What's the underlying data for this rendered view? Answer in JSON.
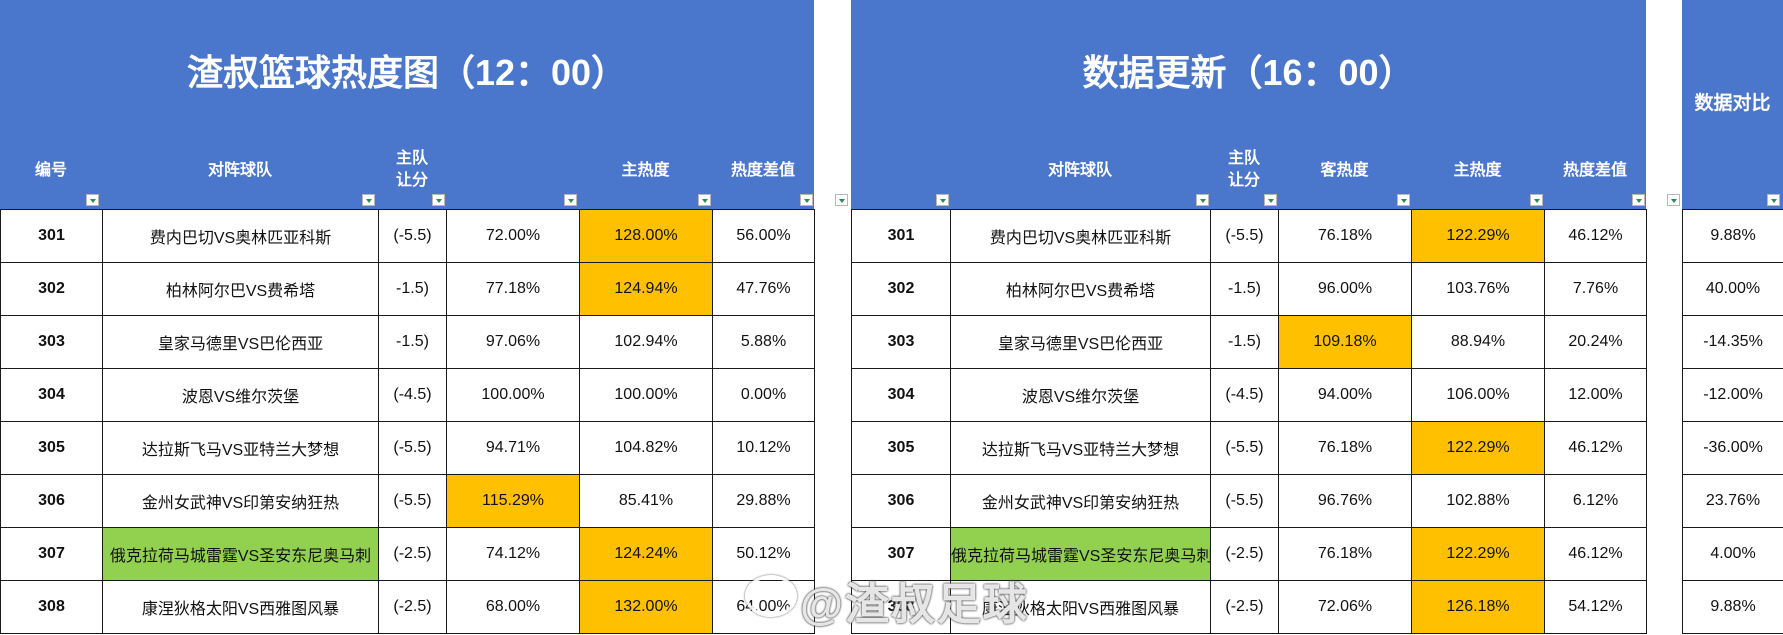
{
  "left": {
    "title": "渣叔篮球热度图（12：00）",
    "headers": [
      "编号",
      "对阵球队",
      "主队\n让分",
      "",
      "主热度",
      "热度差值"
    ],
    "rows": [
      {
        "id": "301",
        "match": "费内巴切VS奥林匹亚科斯",
        "handicap": "(-5.5)",
        "away": "72.00%",
        "home": "128.00%",
        "diff": "56.00%"
      },
      {
        "id": "302",
        "match": "柏林阿尔巴VS费希塔",
        "handicap": "-1.5)",
        "away": "77.18%",
        "home": "124.94%",
        "diff": "47.76%"
      },
      {
        "id": "303",
        "match": "皇家马德里VS巴伦西亚",
        "handicap": "-1.5)",
        "away": "97.06%",
        "home": "102.94%",
        "diff": "5.88%"
      },
      {
        "id": "304",
        "match": "波恩VS维尔茨堡",
        "handicap": "(-4.5)",
        "away": "100.00%",
        "home": "100.00%",
        "diff": "0.00%"
      },
      {
        "id": "305",
        "match": "达拉斯飞马VS亚特兰大梦想",
        "handicap": "(-5.5)",
        "away": "94.71%",
        "home": "104.82%",
        "diff": "10.12%"
      },
      {
        "id": "306",
        "match": "金州女武神VS印第安纳狂热",
        "handicap": "(-5.5)",
        "away": "115.29%",
        "home": "85.41%",
        "diff": "29.88%"
      },
      {
        "id": "307",
        "match": "俄克拉荷马城雷霆VS圣安东尼奥马刺",
        "handicap": "(-2.5)",
        "away": "74.12%",
        "home": "124.24%",
        "diff": "50.12%"
      },
      {
        "id": "308",
        "match": "康涅狄格太阳VS西雅图风暴",
        "handicap": "(-2.5)",
        "away": "68.00%",
        "home": "132.00%",
        "diff": "64.00%"
      }
    ]
  },
  "right": {
    "title": "数据更新（16：00）",
    "headers": [
      "",
      "对阵球队",
      "主队\n让分",
      "客热度",
      "主热度",
      "热度差值"
    ],
    "rows": [
      {
        "id": "301",
        "match": "费内巴切VS奥林匹亚科斯",
        "handicap": "(-5.5)",
        "away": "76.18%",
        "home": "122.29%",
        "diff": "46.12%"
      },
      {
        "id": "302",
        "match": "柏林阿尔巴VS费希塔",
        "handicap": "-1.5)",
        "away": "96.00%",
        "home": "103.76%",
        "diff": "7.76%"
      },
      {
        "id": "303",
        "match": "皇家马德里VS巴伦西亚",
        "handicap": "-1.5)",
        "away": "109.18%",
        "home": "88.94%",
        "diff": "20.24%"
      },
      {
        "id": "304",
        "match": "波恩VS维尔茨堡",
        "handicap": "(-4.5)",
        "away": "94.00%",
        "home": "106.00%",
        "diff": "12.00%"
      },
      {
        "id": "305",
        "match": "达拉斯飞马VS亚特兰大梦想",
        "handicap": "(-5.5)",
        "away": "76.18%",
        "home": "122.29%",
        "diff": "46.12%"
      },
      {
        "id": "306",
        "match": "金州女武神VS印第安纳狂热",
        "handicap": "(-5.5)",
        "away": "96.76%",
        "home": "102.88%",
        "diff": "6.12%"
      },
      {
        "id": "307",
        "match": "俄克拉荷马城雷霆VS圣安东尼奥马刺",
        "handicap": "(-2.5)",
        "away": "76.18%",
        "home": "122.29%",
        "diff": "46.12%"
      },
      {
        "id": "308",
        "match": "康涅狄格太阳VS西雅图风暴",
        "handicap": "(-2.5)",
        "away": "72.06%",
        "home": "126.18%",
        "diff": "54.12%"
      }
    ]
  },
  "compare": {
    "title": "数据对比",
    "values": [
      "9.88%",
      "40.00%",
      "-14.35%",
      "-12.00%",
      "-36.00%",
      "23.76%",
      "4.00%",
      "9.88%"
    ]
  },
  "watermark": "@渣叔足球",
  "colors": {
    "header_blue": "#4a76cc",
    "highlight": "#ffc000",
    "green": "#92d050"
  }
}
